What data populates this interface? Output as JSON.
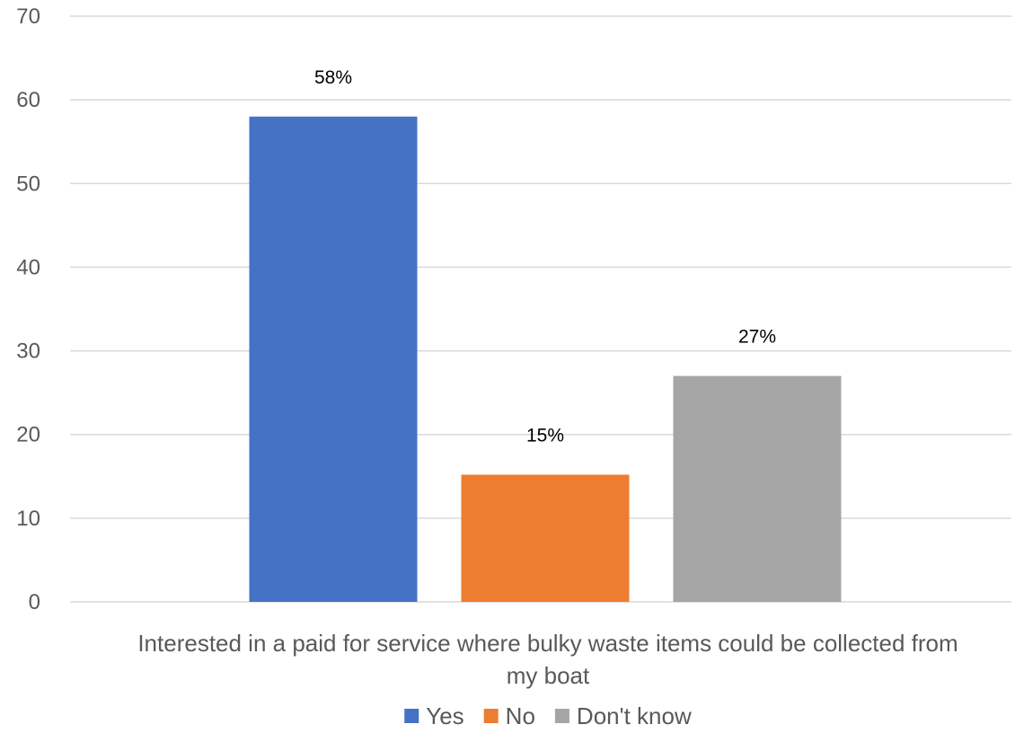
{
  "chart_data": {
    "type": "bar",
    "categories": [
      "Interested in a paid for service where bulky waste items could be collected from my boat"
    ],
    "category_label_lines": [
      "Interested in a paid for service where bulky waste items could be collected from",
      "my boat"
    ],
    "series": [
      {
        "name": "Yes",
        "values": [
          58
        ],
        "data_label": "58%",
        "color": "#4472C4"
      },
      {
        "name": "No",
        "values": [
          15.2
        ],
        "data_label": "15%",
        "color": "#ED7D31"
      },
      {
        "name": "Don't know",
        "values": [
          27
        ],
        "data_label": "27%",
        "color": "#A5A5A5"
      }
    ],
    "ylim": [
      0,
      70
    ],
    "yticks": [
      0,
      10,
      20,
      30,
      40,
      50,
      60,
      70
    ],
    "grid": true,
    "legend": "bottom"
  }
}
